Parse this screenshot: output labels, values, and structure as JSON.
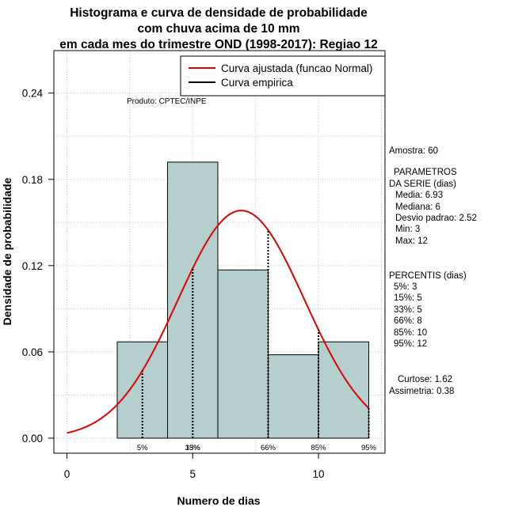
{
  "chart_data": {
    "type": "bar",
    "title_lines": [
      "Histograma e curva de densidade de probabilidade",
      "com chuva acima de 10 mm",
      "em cada mes do trimestre OND (1998-2017): Regiao 12"
    ],
    "xlabel": "Numero de dias",
    "ylabel": "Densidade de probabilidade",
    "xlim": [
      -0.5,
      12.5
    ],
    "ylim": [
      -0.01,
      0.26
    ],
    "x_ticks": [
      0,
      5,
      10
    ],
    "y_ticks": [
      0.0,
      0.06,
      0.12,
      0.18,
      0.24
    ],
    "x_tick_labels": [
      "0",
      "5",
      "10"
    ],
    "y_tick_labels": [
      "0.00",
      "0.06",
      "0.12",
      "0.18",
      "0.24"
    ],
    "grid": true,
    "bins": [
      {
        "start": 2,
        "end": 4,
        "density": 0.067
      },
      {
        "start": 4,
        "end": 6,
        "density": 0.192
      },
      {
        "start": 6,
        "end": 8,
        "density": 0.117
      },
      {
        "start": 8,
        "end": 10,
        "density": 0.058
      },
      {
        "start": 10,
        "end": 12,
        "density": 0.067
      }
    ],
    "bar_color": "#b5cece",
    "normal_curve": {
      "mean": 6.93,
      "sd": 2.52,
      "x_from": 0,
      "x_to": 12,
      "color": "#e00000"
    },
    "percentile_lines": [
      {
        "label": "5%",
        "x": 3
      },
      {
        "label": "15%",
        "x": 5
      },
      {
        "label": "33%",
        "x": 5
      },
      {
        "label": "66%",
        "x": 8
      },
      {
        "label": "85%",
        "x": 10
      },
      {
        "label": "95%",
        "x": 12
      }
    ],
    "legend": {
      "position": "top-right",
      "entries": [
        {
          "label": "Curva ajustada (funcao Normal)",
          "color": "#e00000"
        },
        {
          "label": "Curva empirica",
          "color": "#000000"
        }
      ]
    },
    "annotation": "Produto: CPTEC/INPE"
  },
  "stats_panel": {
    "sample": "Amostra: 60",
    "params_title_1": "PARAMETROS",
    "params_title_2": "DA SERIE (dias)",
    "media": "Media: 6.93",
    "mediana": "Mediana: 6",
    "desvio": "Desvio padrao: 2.52",
    "min": "Min: 3",
    "max": "Max: 12",
    "percentis_title": "PERCENTIS (dias)",
    "p5": "5%: 3",
    "p15": "15%: 5",
    "p33": "33%: 5",
    "p66": "66%: 8",
    "p85": "85%: 10",
    "p95": "95%: 12",
    "curtose": "Curtose: 1.62",
    "assimetria": "Assimetria: 0.38"
  }
}
